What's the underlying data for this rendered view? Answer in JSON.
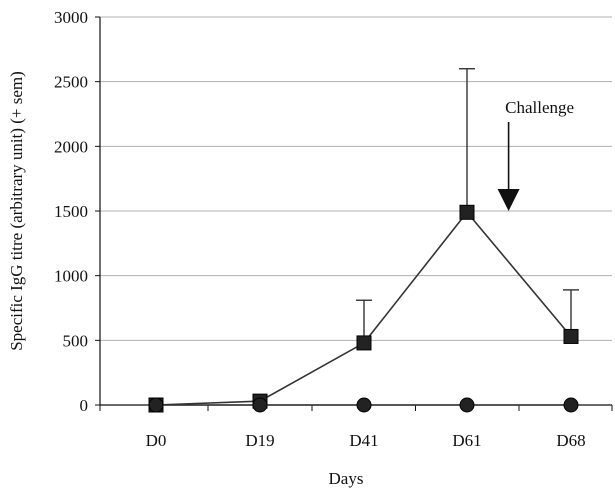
{
  "chart_data": {
    "type": "line",
    "title": "",
    "xlabel": "Days",
    "ylabel": "Specific IgG titre (arbitrary unit) (+ sem)",
    "categories": [
      "D0",
      "D19",
      "D41",
      "D61",
      "D68"
    ],
    "ylim": [
      0,
      3000
    ],
    "yticks": [
      0,
      500,
      1000,
      1500,
      2000,
      2500,
      3000
    ],
    "grid": true,
    "series": [
      {
        "marker": "square",
        "values": [
          0,
          30,
          480,
          1490,
          530
        ],
        "error_plus": [
          0,
          0,
          330,
          1110,
          360
        ]
      },
      {
        "marker": "circle",
        "values": [
          0,
          0,
          0,
          0,
          0
        ],
        "error_plus": [
          0,
          0,
          0,
          0,
          0
        ]
      }
    ],
    "annotations": [
      {
        "text": "Challenge",
        "category_position": 3.4,
        "arrow_tip_value": 1500
      }
    ],
    "colors": {
      "line": "#333333",
      "marker": "#222222",
      "grid": "#b0b0b0",
      "axis": "#111111"
    }
  }
}
